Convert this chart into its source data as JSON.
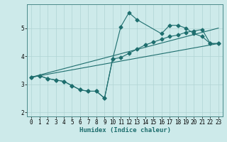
{
  "xlabel": "Humidex (Indice chaleur)",
  "background_color": "#cdeaea",
  "grid_color": "#b0d4d4",
  "line_color": "#1e6e6e",
  "spine_color": "#4a8a8a",
  "xlim": [
    -0.5,
    23.5
  ],
  "ylim": [
    1.85,
    5.85
  ],
  "xticks": [
    0,
    1,
    2,
    3,
    4,
    5,
    6,
    7,
    8,
    9,
    10,
    11,
    12,
    13,
    14,
    15,
    16,
    17,
    18,
    19,
    20,
    21,
    22,
    23
  ],
  "yticks": [
    2,
    3,
    4,
    5
  ],
  "line1_x": [
    0,
    1,
    2,
    3,
    4,
    5,
    6,
    7,
    8,
    9,
    10,
    11,
    12,
    13,
    16,
    17,
    18,
    19,
    20,
    21,
    22,
    23
  ],
  "line1_y": [
    3.25,
    3.3,
    3.2,
    3.15,
    3.1,
    2.95,
    2.8,
    2.75,
    2.75,
    2.5,
    3.9,
    5.05,
    5.55,
    5.3,
    4.8,
    5.1,
    5.1,
    5.0,
    4.8,
    4.7,
    4.45,
    4.45
  ],
  "line2_x": [
    0,
    1,
    2,
    3,
    4,
    5,
    6,
    7,
    8,
    9,
    10,
    11,
    12,
    13,
    14,
    15,
    16,
    17,
    18,
    19,
    20,
    21,
    22,
    23
  ],
  "line2_y": [
    3.25,
    3.3,
    3.2,
    3.15,
    3.1,
    2.95,
    2.8,
    2.75,
    2.75,
    2.5,
    3.9,
    3.95,
    4.1,
    4.25,
    4.4,
    4.5,
    4.6,
    4.7,
    4.75,
    4.85,
    4.9,
    4.95,
    4.45,
    4.45
  ],
  "line3_x": [
    0,
    23
  ],
  "line3_y": [
    3.25,
    4.45
  ],
  "line4_x": [
    0,
    23
  ],
  "line4_y": [
    3.25,
    4.45
  ]
}
